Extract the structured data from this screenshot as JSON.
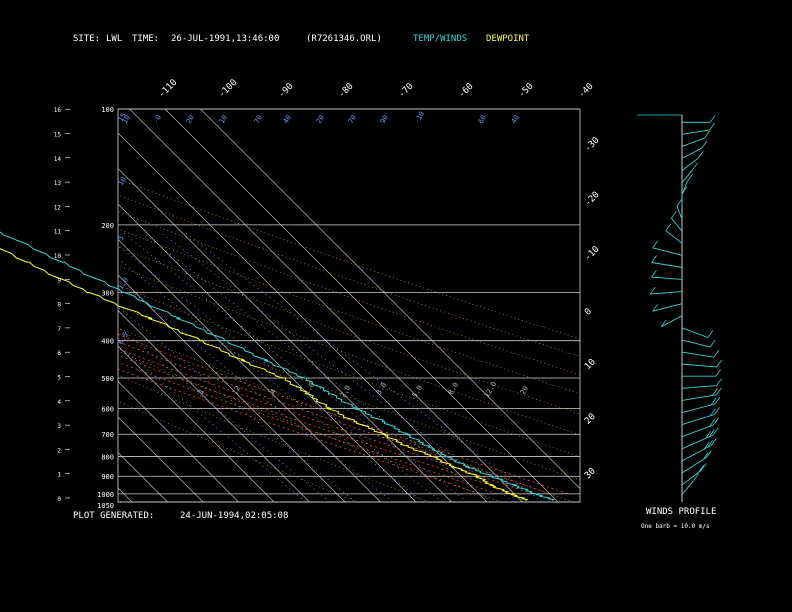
{
  "header": {
    "site_label": "SITE:",
    "site_value": "LWL",
    "time_label": "TIME:",
    "time_value": "26-JUL-1991,13:46:00",
    "file": "(R7261346.ORL)",
    "legend_temp": "TEMP/WINDS",
    "legend_dewpoint": "DEWPOINT"
  },
  "footer": {
    "generated_label": "PLOT GENERATED:",
    "generated_value": "24-JUN-1994,02:05:08",
    "winds_profile_label": "WINDS PROFILE",
    "barb_note": "One barb = 10.0 m/s"
  },
  "colors": {
    "background": "#000000",
    "text": "#ffffff",
    "temp": "#2fd7d7",
    "dewpoint": "#ffff33",
    "isotherm": "#bdbdbd",
    "dry_adiabat": "#cc9900",
    "moist_adiabat": "#ff4433",
    "mixing_ratio": "#6699ff"
  },
  "chart_data": {
    "type": "skew-t",
    "pressure_levels_mb": [
      1050,
      1000,
      900,
      800,
      700,
      600,
      500,
      400,
      300,
      200,
      100
    ],
    "altitude_km_ticks": [
      0,
      1,
      2,
      3,
      4,
      5,
      6,
      7,
      8,
      9,
      10,
      11,
      12,
      13,
      14,
      15,
      16
    ],
    "top_isotherm_labels": [
      "-110",
      "-100",
      "-90",
      "-80",
      "-70",
      "-60",
      "-50",
      "-40"
    ],
    "right_isotherm_labels": [
      "-30",
      "-20",
      "-10",
      "0",
      "10",
      "20",
      "30"
    ],
    "mixing_ratio_labels_left": [
      "15",
      "10",
      "5",
      "1.0",
      "0.5"
    ],
    "dry_adiabat_labels": [
      "10",
      "-0",
      "20",
      "10",
      "70",
      "40",
      "20",
      "70",
      "90",
      "-10",
      "60",
      "40"
    ],
    "lower_labels": [
      ".1",
      ".2",
      ".4",
      "1.0",
      "2.0",
      "3.0",
      "5.0",
      "8.0",
      "12.0",
      "20"
    ],
    "temperature_profile": [
      {
        "p": 1040,
        "t": 29.5
      },
      {
        "p": 1000,
        "t": 26
      },
      {
        "p": 950,
        "t": 22.5
      },
      {
        "p": 900,
        "t": 18.5
      },
      {
        "p": 850,
        "t": 14.5
      },
      {
        "p": 800,
        "t": 11.5
      },
      {
        "p": 750,
        "t": 9
      },
      {
        "p": 700,
        "t": 6.5
      },
      {
        "p": 650,
        "t": 3.5
      },
      {
        "p": 600,
        "t": -0.5
      },
      {
        "p": 550,
        "t": -3.5
      },
      {
        "p": 500,
        "t": -6.5
      },
      {
        "p": 450,
        "t": -12.5
      },
      {
        "p": 400,
        "t": -18
      },
      {
        "p": 350,
        "t": -25
      },
      {
        "p": 300,
        "t": -33
      },
      {
        "p": 250,
        "t": -42
      },
      {
        "p": 200,
        "t": -53
      },
      {
        "p": 175,
        "t": -60
      },
      {
        "p": 150,
        "t": -67
      },
      {
        "p": 140,
        "t": -65
      },
      {
        "p": 130,
        "t": -62
      },
      {
        "p": 120,
        "t": -59
      },
      {
        "p": 110,
        "t": -55
      },
      {
        "p": 100,
        "t": -52
      }
    ],
    "dewpoint_profile": [
      {
        "p": 1040,
        "t": 22
      },
      {
        "p": 1000,
        "t": 19
      },
      {
        "p": 950,
        "t": 16
      },
      {
        "p": 900,
        "t": 14.5
      },
      {
        "p": 850,
        "t": 10.5
      },
      {
        "p": 800,
        "t": 7.5
      },
      {
        "p": 750,
        "t": 3
      },
      {
        "p": 700,
        "t": 0
      },
      {
        "p": 650,
        "t": -4.5
      },
      {
        "p": 600,
        "t": -8
      },
      {
        "p": 550,
        "t": -10
      },
      {
        "p": 500,
        "t": -12.5
      },
      {
        "p": 450,
        "t": -19
      },
      {
        "p": 400,
        "t": -25
      },
      {
        "p": 350,
        "t": -33
      },
      {
        "p": 300,
        "t": -43
      },
      {
        "p": 250,
        "t": -52
      },
      {
        "p": 200,
        "t": -61
      },
      {
        "p": 175,
        "t": -68
      },
      {
        "p": 150,
        "t": -73
      },
      {
        "p": 130,
        "t": -75
      },
      {
        "p": 115,
        "t": -77
      },
      {
        "p": 100,
        "t": -78
      }
    ],
    "wind_profile": [
      {
        "km": 0.3,
        "dir": 200,
        "spd": 6
      },
      {
        "km": 0.7,
        "dir": 210,
        "spd": 9
      },
      {
        "km": 1.2,
        "dir": 215,
        "spd": 12
      },
      {
        "km": 1.7,
        "dir": 220,
        "spd": 14
      },
      {
        "km": 2.2,
        "dir": 225,
        "spd": 13
      },
      {
        "km": 2.7,
        "dir": 230,
        "spd": 11
      },
      {
        "km": 3.2,
        "dir": 235,
        "spd": 10
      },
      {
        "km": 3.7,
        "dir": 240,
        "spd": 9
      },
      {
        "km": 4.2,
        "dir": 250,
        "spd": 8
      },
      {
        "km": 4.7,
        "dir": 260,
        "spd": 7
      },
      {
        "km": 5.2,
        "dir": 270,
        "spd": 6
      },
      {
        "km": 5.7,
        "dir": 280,
        "spd": 7
      },
      {
        "km": 6.2,
        "dir": 290,
        "spd": 6
      },
      {
        "km": 6.7,
        "dir": 300,
        "spd": 5
      },
      {
        "km": 7.2,
        "dir": 310,
        "spd": 6
      },
      {
        "km": 7.7,
        "dir": 40,
        "spd": 5
      },
      {
        "km": 8.2,
        "dir": 60,
        "spd": 6
      },
      {
        "km": 8.7,
        "dir": 80,
        "spd": 5
      },
      {
        "km": 9.2,
        "dir": 100,
        "spd": 4
      },
      {
        "km": 9.7,
        "dir": 110,
        "spd": 5
      },
      {
        "km": 10.2,
        "dir": 120,
        "spd": 6
      },
      {
        "km": 10.7,
        "dir": 150,
        "spd": 5
      },
      {
        "km": 11.2,
        "dir": 160,
        "spd": 4
      },
      {
        "km": 11.7,
        "dir": 170,
        "spd": 3
      },
      {
        "km": 12.2,
        "dir": 180,
        "spd": 3
      },
      {
        "km": 12.7,
        "dir": 190,
        "spd": 4
      },
      {
        "km": 13.2,
        "dir": 200,
        "spd": 4
      },
      {
        "km": 13.7,
        "dir": 210,
        "spd": 5
      },
      {
        "km": 14.2,
        "dir": 220,
        "spd": 4
      },
      {
        "km": 14.7,
        "dir": 230,
        "spd": 3
      },
      {
        "km": 15.2,
        "dir": 250,
        "spd": 3
      },
      {
        "km": 15.7,
        "dir": 270,
        "spd": 2
      }
    ]
  }
}
